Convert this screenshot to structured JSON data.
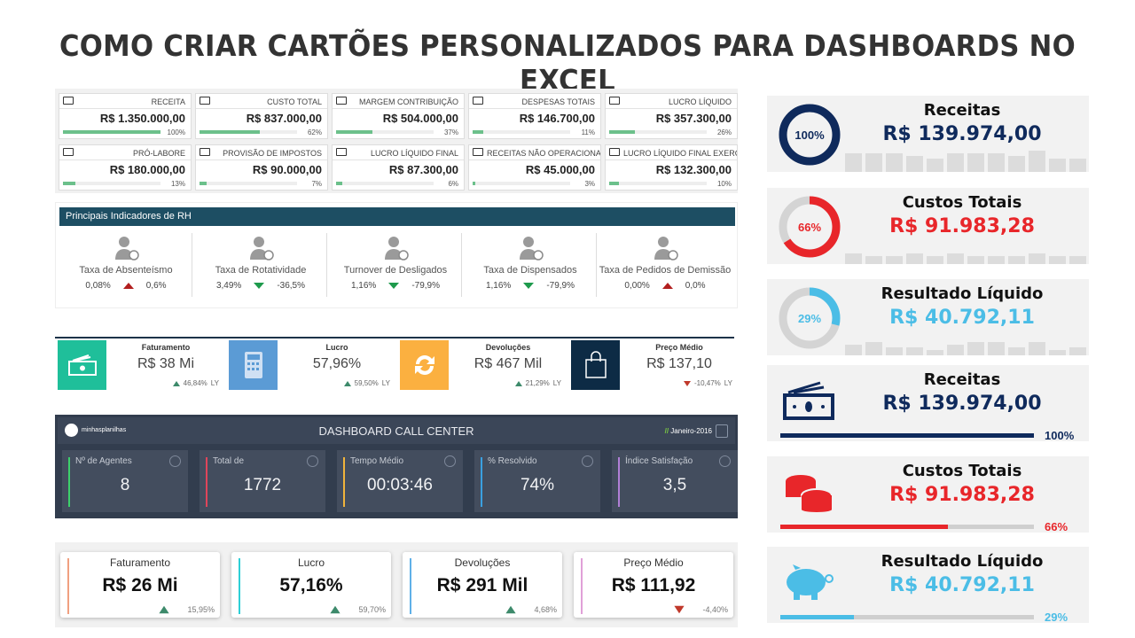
{
  "title": "COMO CRIAR CARTÕES PERSONALIZADOS PARA DASHBOARDS NO EXCEL",
  "finance_cards": [
    {
      "label": "RECEITA",
      "value": "R$ 1.350.000,00",
      "percent": "100%",
      "fill": 100
    },
    {
      "label": "CUSTO TOTAL",
      "value": "R$ 837.000,00",
      "percent": "62%",
      "fill": 62
    },
    {
      "label": "MARGEM CONTRIBUIÇÃO",
      "value": "R$ 504.000,00",
      "percent": "37%",
      "fill": 37
    },
    {
      "label": "DESPESAS TOTAIS",
      "value": "R$ 146.700,00",
      "percent": "11%",
      "fill": 11
    },
    {
      "label": "LUCRO LÍQUIDO",
      "value": "R$ 357.300,00",
      "percent": "26%",
      "fill": 26
    },
    {
      "label": "PRÓ-LABORE",
      "value": "R$ 180.000,00",
      "percent": "13%",
      "fill": 13
    },
    {
      "label": "PROVISÃO DE IMPOSTOS",
      "value": "R$ 90.000,00",
      "percent": "7%",
      "fill": 7
    },
    {
      "label": "LUCRO LÍQUIDO FINAL",
      "value": "R$ 87.300,00",
      "percent": "6%",
      "fill": 6
    },
    {
      "label": "RECEITAS NÃO OPERACIONAIS",
      "value": "R$ 45.000,00",
      "percent": "3%",
      "fill": 3
    },
    {
      "label": "LUCRO LÍQUIDO FINAL EXERCÍCIO",
      "value": "R$ 132.300,00",
      "percent": "10%",
      "fill": 10
    }
  ],
  "rh": {
    "header": "Principais Indicadores de RH",
    "items": [
      {
        "label": "Taxa de Absenteísmo",
        "value": "0,08%",
        "change": "0,6%",
        "trend": "up",
        "icon": "user-minus-icon"
      },
      {
        "label": "Taxa de Rotatividade",
        "value": "3,49%",
        "change": "-36,5%",
        "trend": "down",
        "icon": "rotation-users-icon"
      },
      {
        "label": "Turnover de Desligados",
        "value": "1,16%",
        "change": "-79,9%",
        "trend": "down",
        "icon": "user-swap-icon"
      },
      {
        "label": "Taxa de Dispensados",
        "value": "1,16%",
        "change": "-79,9%",
        "trend": "down",
        "icon": "user-remove-icon"
      },
      {
        "label": "Taxa de Pedidos de Demissão",
        "value": "0,00%",
        "change": "0,0%",
        "trend": "up",
        "icon": "resignation-icon"
      }
    ]
  },
  "kpi_blocks": [
    {
      "label": "Faturamento",
      "value": "R$ 38 Mi",
      "change": "46,84%",
      "suffix": "LY",
      "trend": "up",
      "color": "#1fbf9a",
      "icon": "money-icon"
    },
    {
      "label": "Lucro",
      "value": "57,96%",
      "change": "59,50%",
      "suffix": "LY",
      "trend": "up",
      "color": "#5b9bd5",
      "icon": "calculator-icon"
    },
    {
      "label": "Devoluções",
      "value": "R$ 467 Mil",
      "change": "21,29%",
      "suffix": "LY",
      "trend": "up",
      "color": "#fbb040",
      "icon": "refresh-icon"
    },
    {
      "label": "Preço Médio",
      "value": "R$ 137,10",
      "change": "-10,47%",
      "suffix": "LY",
      "trend": "down",
      "color": "#0d2b45",
      "icon": "shopping-bag-icon"
    }
  ],
  "call_center": {
    "logo": "minhasplanilhas",
    "title": "DASHBOARD CALL CENTER",
    "date_prefix": "//",
    "date": "Janeiro-2016",
    "cards": [
      {
        "label": "Nº de Agentes",
        "value": "8",
        "color": "#3ccf6b",
        "icon": "agent-icon"
      },
      {
        "label": "Total de",
        "value": "1772",
        "color": "#e0455a",
        "icon": "headset-icon"
      },
      {
        "label": "Tempo Médio",
        "value": "00:03:46",
        "color": "#f0b43c",
        "icon": "clock-icon"
      },
      {
        "label": "% Resolvido",
        "value": "74%",
        "color": "#3aa0e0",
        "icon": "phone-icon"
      },
      {
        "label": "Índice Satisfação",
        "value": "3,5",
        "color": "#b07fd6",
        "icon": "check-icon"
      }
    ]
  },
  "sales_cards": [
    {
      "label": "Faturamento",
      "value": "R$ 26 Mi",
      "change": "15,95%",
      "trend": "up",
      "color": "#f0a080"
    },
    {
      "label": "Lucro",
      "value": "57,16%",
      "change": "59,70%",
      "trend": "up",
      "color": "#2ecfd6"
    },
    {
      "label": "Devoluções",
      "value": "R$ 291 Mil",
      "change": "4,68%",
      "trend": "up",
      "color": "#5fb0e8"
    },
    {
      "label": "Preço Médio",
      "value": "R$ 111,92",
      "change": "-4,40%",
      "trend": "down",
      "color": "#e0a0d8"
    }
  ],
  "donut_cards": [
    {
      "label": "Receitas",
      "value": "R$ 139.974,00",
      "percent": "100%",
      "fill": 100,
      "color": "#0f2a5c",
      "sparkline": [
        7,
        7,
        7,
        6,
        5,
        7,
        7,
        7,
        6,
        8,
        5,
        5
      ]
    },
    {
      "label": "Custos Totais",
      "value": "R$ 91.983,28",
      "percent": "66%",
      "fill": 66,
      "color": "#e8262a",
      "sparkline": [
        4,
        3,
        3,
        4,
        3,
        4,
        3,
        3,
        3,
        4,
        3,
        3
      ]
    },
    {
      "label": "Resultado Líquido",
      "value": "R$ 40.792,11",
      "percent": "29%",
      "fill": 29,
      "color": "#4bbde6",
      "sparkline": [
        4,
        5,
        3,
        3,
        2,
        4,
        5,
        5,
        3,
        5,
        2,
        3
      ]
    }
  ],
  "bar_cards": [
    {
      "label": "Receitas",
      "value": "R$ 139.974,00",
      "percent": "100%",
      "fill": 100,
      "color": "#0f2a5c",
      "icon": "money-icon"
    },
    {
      "label": "Custos Totais",
      "value": "R$ 91.983,28",
      "percent": "66%",
      "fill": 66,
      "color": "#e8262a",
      "icon": "coins-icon"
    },
    {
      "label": "Resultado Líquido",
      "value": "R$ 40.792,11",
      "percent": "29%",
      "fill": 29,
      "color": "#4bbde6",
      "icon": "piggy-bank-icon"
    }
  ]
}
